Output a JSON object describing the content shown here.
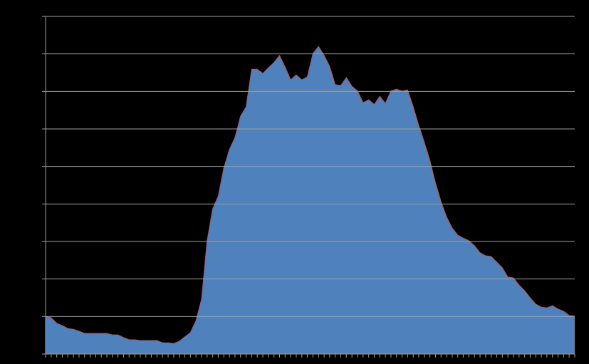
{
  "chart_data": {
    "type": "area",
    "x": [
      0,
      1,
      2,
      3,
      4,
      5,
      6,
      7,
      8,
      9,
      10,
      11,
      12,
      13,
      14,
      15,
      16,
      17,
      18,
      19,
      20,
      21,
      22,
      23,
      24,
      25,
      26,
      27,
      28,
      29,
      30,
      31,
      32,
      33,
      34,
      35,
      36,
      37,
      38,
      39,
      40,
      41,
      42,
      43,
      44,
      45,
      46,
      47,
      48,
      49,
      50,
      51,
      52,
      53,
      54,
      55,
      56,
      57,
      58,
      59,
      60,
      61,
      62,
      63,
      64,
      65,
      66,
      67,
      68,
      69,
      70,
      71,
      72,
      73,
      74,
      75,
      76,
      77,
      78,
      79,
      80,
      81,
      82,
      83,
      84,
      85,
      86,
      87,
      88,
      89,
      90,
      91,
      92,
      93,
      94,
      95
    ],
    "values": [
      1.0,
      0.97,
      0.82,
      0.76,
      0.68,
      0.66,
      0.61,
      0.55,
      0.55,
      0.55,
      0.55,
      0.55,
      0.51,
      0.51,
      0.44,
      0.38,
      0.38,
      0.36,
      0.36,
      0.36,
      0.36,
      0.3,
      0.3,
      0.28,
      0.34,
      0.46,
      0.57,
      0.89,
      1.46,
      3.02,
      3.87,
      4.21,
      4.96,
      5.45,
      5.77,
      6.34,
      6.59,
      7.59,
      7.59,
      7.48,
      7.63,
      7.77,
      7.96,
      7.65,
      7.31,
      7.44,
      7.31,
      7.39,
      8.01,
      8.2,
      7.96,
      7.67,
      7.18,
      7.16,
      7.37,
      7.14,
      7.01,
      6.7,
      6.78,
      6.65,
      6.87,
      6.68,
      7.01,
      7.06,
      7.01,
      7.04,
      6.59,
      6.09,
      5.64,
      5.16,
      4.56,
      4.06,
      3.65,
      3.36,
      3.17,
      3.09,
      3.02,
      2.89,
      2.7,
      2.62,
      2.6,
      2.45,
      2.3,
      2.05,
      2.03,
      1.84,
      1.69,
      1.5,
      1.33,
      1.25,
      1.23,
      1.29,
      1.2,
      1.14,
      1.03,
      1.01
    ],
    "color": "#4f81bd",
    "line_color": "#c0504d",
    "xlim": [
      0,
      95
    ],
    "ylim": [
      0,
      9
    ],
    "yticks": [
      0,
      1,
      2,
      3,
      4,
      5,
      6,
      7,
      8,
      9
    ],
    "grid": true
  }
}
